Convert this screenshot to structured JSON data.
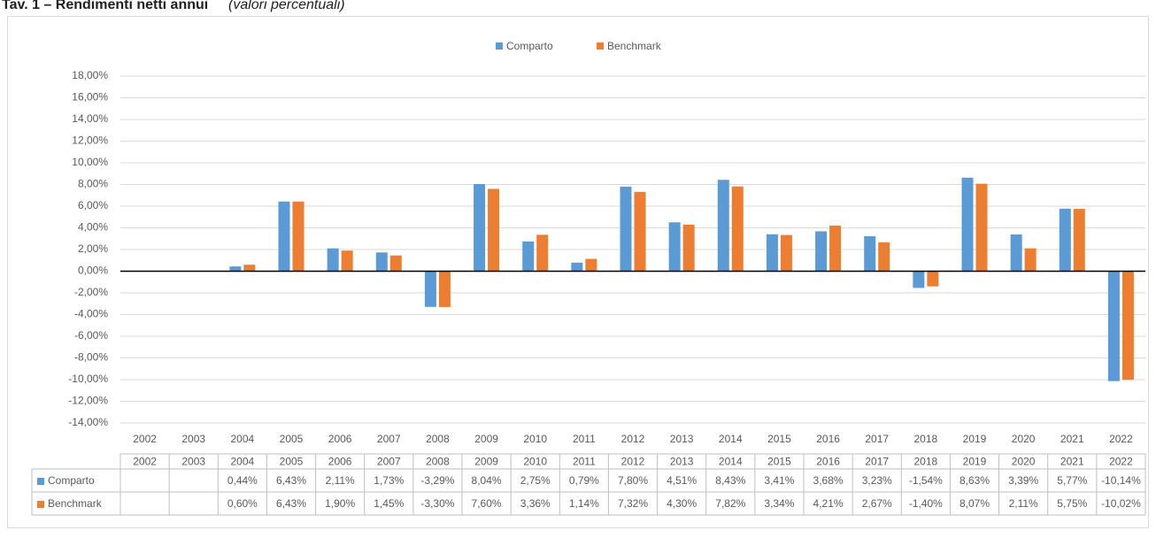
{
  "chart_data": {
    "type": "bar",
    "title": "Tav. 1 – Rendimenti netti annui",
    "subtitle": "(valori percentuali)",
    "categories": [
      "2002",
      "2003",
      "2004",
      "2005",
      "2006",
      "2007",
      "2008",
      "2009",
      "2010",
      "2011",
      "2012",
      "2013",
      "2014",
      "2015",
      "2016",
      "2017",
      "2018",
      "2019",
      "2020",
      "2021",
      "2022"
    ],
    "series": [
      {
        "name": "Comparto",
        "color": "#5b9bd5",
        "values": [
          null,
          null,
          0.44,
          6.43,
          2.11,
          1.73,
          -3.29,
          8.04,
          2.75,
          0.79,
          7.8,
          4.51,
          8.43,
          3.41,
          3.68,
          3.23,
          -1.54,
          8.63,
          3.39,
          5.77,
          -10.14
        ],
        "value_labels": [
          null,
          null,
          "0,44%",
          "6,43%",
          "2,11%",
          "1,73%",
          "-3,29%",
          "8,04%",
          "2,75%",
          "0,79%",
          "7,80%",
          "4,51%",
          "8,43%",
          "3,41%",
          "3,68%",
          "3,23%",
          "-1,54%",
          "8,63%",
          "3,39%",
          "5,77%",
          "-10,14%"
        ]
      },
      {
        "name": "Benchmark",
        "color": "#ed7d31",
        "values": [
          null,
          null,
          0.6,
          6.43,
          1.9,
          1.45,
          -3.3,
          7.6,
          3.36,
          1.14,
          7.32,
          4.3,
          7.82,
          3.34,
          4.21,
          2.67,
          -1.4,
          8.07,
          2.11,
          5.75,
          -10.02
        ],
        "value_labels": [
          null,
          null,
          "0,60%",
          "6,43%",
          "1,90%",
          "1,45%",
          "-3,30%",
          "7,60%",
          "3,36%",
          "1,14%",
          "7,32%",
          "4,30%",
          "7,82%",
          "3,34%",
          "4,21%",
          "2,67%",
          "-1,40%",
          "8,07%",
          "2,11%",
          "5,75%",
          "-10,02%"
        ]
      }
    ],
    "ylim": [
      -14,
      18
    ],
    "yticks": [
      {
        "value": 18,
        "label": "18,00%"
      },
      {
        "value": 16,
        "label": "16,00%"
      },
      {
        "value": 14,
        "label": "14,00%"
      },
      {
        "value": 12,
        "label": "12,00%"
      },
      {
        "value": 10,
        "label": "10,00%"
      },
      {
        "value": 8,
        "label": "8,00%"
      },
      {
        "value": 6,
        "label": "6,00%"
      },
      {
        "value": 4,
        "label": "4,00%"
      },
      {
        "value": 2,
        "label": "2,00%"
      },
      {
        "value": 0,
        "label": "0,00%"
      },
      {
        "value": -2,
        "label": "-2,00%"
      },
      {
        "value": -4,
        "label": "-4,00%"
      },
      {
        "value": -6,
        "label": "-6,00%"
      },
      {
        "value": -8,
        "label": "-8,00%"
      },
      {
        "value": -10,
        "label": "-10,00%"
      },
      {
        "value": -12,
        "label": "-12,00%"
      },
      {
        "value": -14,
        "label": "-14,00%"
      }
    ],
    "grid": true,
    "legend": "top"
  }
}
